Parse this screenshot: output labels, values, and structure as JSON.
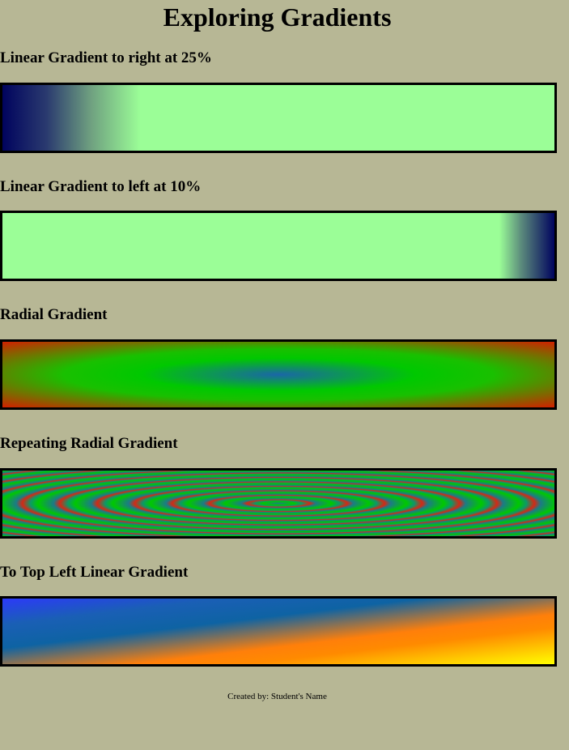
{
  "page": {
    "title": "Exploring Gradients"
  },
  "sections": [
    {
      "heading": "Linear Gradient to right at 25%"
    },
    {
      "heading": "Linear Gradient to left at 10%"
    },
    {
      "heading": "Radial Gradient"
    },
    {
      "heading": "Repeating Radial Gradient"
    },
    {
      "heading": "To Top Left Linear Gradient"
    }
  ],
  "colors": {
    "background": "#b7b795",
    "navy": "#00035e",
    "light_green": "#9bfe97",
    "green": "#00c800",
    "red": "#d22000",
    "blue": "#2c3af8",
    "orange": "#ff8a00",
    "yellow": "#ffff00"
  },
  "footer": {
    "text": "Created by: Student's Name"
  }
}
